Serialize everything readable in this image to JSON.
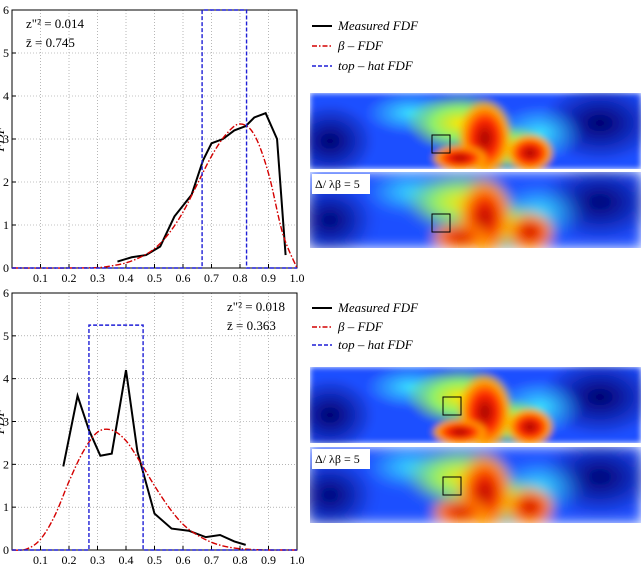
{
  "colors": {
    "measured": "#000000",
    "beta": "#d40000",
    "tophat": "#1f1fd6",
    "grid": "#888888"
  },
  "chart_data": [
    {
      "type": "line",
      "ylabel": "FDF",
      "xlim": [
        0,
        1.0
      ],
      "ylim": [
        0,
        6
      ],
      "xticks": [
        "0.1",
        "0.2",
        "0.3",
        "0.4",
        "0.5",
        "0.6",
        "0.7",
        "0.8",
        "0.9",
        "1.0"
      ],
      "yticks": [
        "0",
        "1",
        "2",
        "3",
        "4",
        "5",
        "6"
      ],
      "grid": true,
      "annotation_line1": "z\"² = 0.014",
      "annotation_line2": "z̄ = 0.745",
      "legend": [
        "Measured FDF",
        "β – FDF",
        "top – hat FDF"
      ],
      "legend_placement": "outside-right",
      "inset_label": "Δ/ λβ = 5",
      "series": [
        {
          "name": "Measured FDF",
          "style": "solid",
          "x": [
            0.37,
            0.42,
            0.47,
            0.52,
            0.57,
            0.63,
            0.67,
            0.7,
            0.74,
            0.78,
            0.82,
            0.85,
            0.89,
            0.93,
            0.96
          ],
          "y": [
            0.15,
            0.25,
            0.3,
            0.5,
            1.2,
            1.7,
            2.5,
            2.9,
            3.0,
            3.2,
            3.3,
            3.5,
            3.6,
            3.0,
            0.3
          ]
        },
        {
          "name": "β – FDF",
          "style": "dashdot",
          "x": [
            0.0,
            0.2,
            0.3,
            0.35,
            0.4,
            0.45,
            0.5,
            0.55,
            0.6,
            0.65,
            0.7,
            0.75,
            0.8,
            0.85,
            0.9,
            0.95,
            1.0
          ],
          "y": [
            0,
            0,
            0.01,
            0.05,
            0.12,
            0.25,
            0.45,
            0.8,
            1.3,
            1.95,
            2.6,
            3.1,
            3.35,
            3.1,
            2.2,
            0.8,
            0
          ]
        },
        {
          "name": "top – hat FDF",
          "style": "dashed",
          "x": [
            0,
            0.667,
            0.667,
            0.823,
            0.823,
            1.0
          ],
          "y": [
            0,
            0,
            6,
            6,
            0,
            0
          ]
        }
      ]
    },
    {
      "type": "line",
      "ylabel": "FDF",
      "xlim": [
        0,
        1.0
      ],
      "ylim": [
        0,
        6
      ],
      "xticks": [
        "0.1",
        "0.2",
        "0.3",
        "0.4",
        "0.5",
        "0.6",
        "0.7",
        "0.8",
        "0.9",
        "1.0"
      ],
      "yticks": [
        "0",
        "1",
        "2",
        "3",
        "4",
        "5",
        "6"
      ],
      "grid": true,
      "annotation_line1": "z\"² = 0.018",
      "annotation_line2": "z̄ = 0.363",
      "legend": [
        "Measured FDF",
        "β – FDF",
        "top – hat FDF"
      ],
      "legend_placement": "outside-right",
      "inset_label": "Δ/ λβ = 5",
      "series": [
        {
          "name": "Measured FDF",
          "style": "solid",
          "x": [
            0.18,
            0.23,
            0.27,
            0.31,
            0.35,
            0.4,
            0.44,
            0.5,
            0.56,
            0.62,
            0.68,
            0.73,
            0.78,
            0.82
          ],
          "y": [
            1.95,
            3.6,
            2.8,
            2.2,
            2.25,
            4.2,
            2.3,
            0.85,
            0.5,
            0.45,
            0.3,
            0.35,
            0.2,
            0.12
          ]
        },
        {
          "name": "β – FDF",
          "style": "dashdot",
          "x": [
            0.0,
            0.05,
            0.1,
            0.15,
            0.2,
            0.25,
            0.3,
            0.35,
            0.4,
            0.45,
            0.5,
            0.55,
            0.6,
            0.65,
            0.7,
            0.75,
            0.8,
            0.85,
            0.9,
            0.95,
            1.0
          ],
          "y": [
            0,
            0.02,
            0.25,
            0.8,
            1.6,
            2.3,
            2.75,
            2.8,
            2.55,
            2.05,
            1.5,
            1.0,
            0.6,
            0.35,
            0.18,
            0.08,
            0.03,
            0.01,
            0,
            0,
            0
          ]
        },
        {
          "name": "top – hat FDF",
          "style": "dashed",
          "x": [
            0,
            0.27,
            0.27,
            0.46,
            0.46,
            1.0
          ],
          "y": [
            0,
            0,
            5.25,
            5.25,
            0,
            0
          ]
        }
      ]
    }
  ]
}
